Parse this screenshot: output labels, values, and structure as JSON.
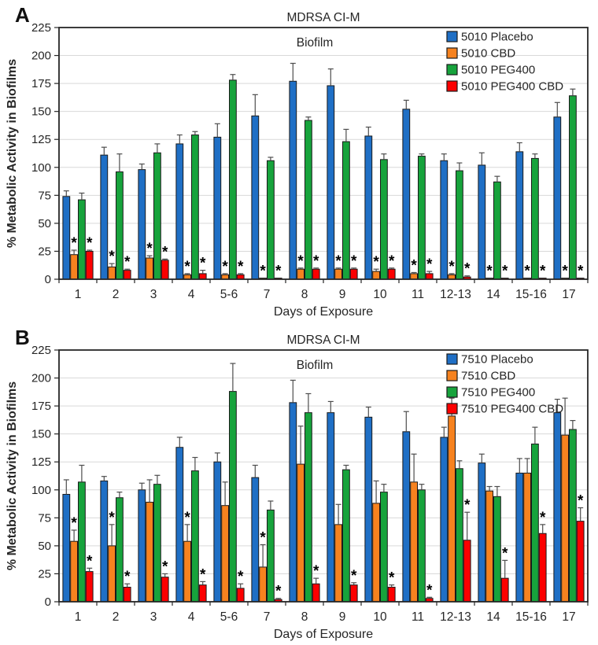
{
  "style": {
    "gridline_color": "#D9D9D9",
    "axis_color": "#262626",
    "bar_outline_color": "#1A1A1A",
    "error_bar_color": "#4D4D4D",
    "significance_color": "#000000"
  },
  "chart_data": [
    {
      "type": "bar",
      "panel_label": "A",
      "title": "MDRSA CI-M",
      "subtitle": "Biofilm",
      "xlabel": "Days of Exposure",
      "ylabel": "% Metabolic Activity in Biofilms",
      "ylim": [
        0,
        225
      ],
      "ytick_step": 25,
      "grid": true,
      "legend_position": "top-right",
      "significance_marker": "*",
      "categories": [
        "1",
        "2",
        "3",
        "4",
        "5-6",
        "7",
        "8",
        "9",
        "10",
        "11",
        "12-13",
        "14",
        "15-16",
        "17"
      ],
      "series": [
        {
          "name": "5010 Placebo",
          "color": "#1F6FC5",
          "values": [
            74,
            111,
            98,
            121,
            127,
            146,
            177,
            173,
            128,
            152,
            106,
            102,
            114,
            145
          ],
          "errors": [
            5,
            7,
            5,
            8,
            12,
            19,
            16,
            15,
            8,
            8,
            6,
            11,
            8,
            13
          ],
          "significant": [
            false,
            false,
            false,
            false,
            false,
            false,
            false,
            false,
            false,
            false,
            false,
            false,
            false,
            false
          ]
        },
        {
          "name": "5010 CBD",
          "color": "#F6821F",
          "values": [
            22,
            11,
            19,
            4,
            4,
            1,
            9,
            9,
            7,
            5,
            4,
            1,
            1,
            1
          ],
          "errors": [
            4,
            3,
            2,
            1,
            1,
            0,
            1,
            1,
            2,
            1,
            1,
            0,
            0,
            0
          ],
          "significant": [
            true,
            true,
            true,
            true,
            true,
            true,
            true,
            true,
            true,
            true,
            true,
            true,
            true,
            true
          ]
        },
        {
          "name": "5010 PEG400",
          "color": "#17A33C",
          "values": [
            71,
            96,
            113,
            129,
            178,
            106,
            142,
            123,
            107,
            110,
            97,
            87,
            108,
            164
          ],
          "errors": [
            6,
            16,
            8,
            3,
            5,
            3,
            3,
            11,
            5,
            2,
            7,
            5,
            4,
            6
          ],
          "significant": [
            false,
            false,
            false,
            false,
            false,
            false,
            false,
            false,
            false,
            false,
            false,
            false,
            false,
            false
          ]
        },
        {
          "name": "5010 PEG400 CBD",
          "color": "#FC0000",
          "values": [
            25,
            8,
            17,
            5,
            4,
            1,
            9,
            9,
            9,
            5,
            2,
            1,
            1,
            1
          ],
          "errors": [
            1,
            1,
            1,
            3,
            1,
            0,
            1,
            1,
            1,
            2,
            1,
            0,
            0,
            0
          ],
          "significant": [
            true,
            true,
            true,
            true,
            true,
            true,
            true,
            true,
            true,
            true,
            true,
            true,
            true,
            true
          ]
        }
      ]
    },
    {
      "type": "bar",
      "panel_label": "B",
      "title": "MDRSA CI-M",
      "subtitle": "Biofilm",
      "xlabel": "Days of Exposure",
      "ylabel": "% Metabolic Activity in Biofilms",
      "ylim": [
        0,
        225
      ],
      "ytick_step": 25,
      "grid": true,
      "legend_position": "top-right",
      "significance_marker": "*",
      "categories": [
        "1",
        "2",
        "3",
        "4",
        "5-6",
        "7",
        "8",
        "9",
        "10",
        "11",
        "12-13",
        "14",
        "15-16",
        "17"
      ],
      "series": [
        {
          "name": "7510 Placebo",
          "color": "#1F6FC5",
          "values": [
            96,
            108,
            100,
            138,
            125,
            111,
            178,
            169,
            165,
            152,
            147,
            124,
            115,
            169
          ],
          "errors": [
            13,
            4,
            6,
            9,
            8,
            11,
            20,
            10,
            9,
            18,
            9,
            8,
            13,
            12
          ],
          "significant": [
            false,
            false,
            false,
            false,
            false,
            false,
            false,
            false,
            false,
            false,
            false,
            false,
            false,
            false
          ]
        },
        {
          "name": "7510 CBD",
          "color": "#F6821F",
          "values": [
            54,
            50,
            89,
            54,
            86,
            31,
            123,
            69,
            88,
            107,
            166,
            99,
            115,
            149
          ],
          "errors": [
            10,
            19,
            20,
            15,
            21,
            20,
            34,
            18,
            20,
            25,
            16,
            4,
            13,
            33
          ],
          "significant": [
            true,
            true,
            false,
            true,
            false,
            true,
            false,
            false,
            false,
            false,
            false,
            false,
            false,
            false
          ]
        },
        {
          "name": "7510 PEG400",
          "color": "#17A33C",
          "values": [
            107,
            93,
            105,
            117,
            188,
            82,
            169,
            118,
            98,
            100,
            119,
            94,
            141,
            154
          ],
          "errors": [
            15,
            5,
            8,
            12,
            25,
            8,
            17,
            4,
            7,
            5,
            7,
            9,
            15,
            8
          ],
          "significant": [
            false,
            false,
            false,
            false,
            false,
            false,
            false,
            false,
            false,
            false,
            false,
            false,
            false,
            false
          ]
        },
        {
          "name": "7510 PEG400 CBD",
          "color": "#FC0000",
          "values": [
            27,
            13,
            22,
            15,
            12,
            2,
            16,
            15,
            13,
            3,
            55,
            21,
            61,
            72
          ],
          "errors": [
            3,
            3,
            3,
            3,
            4,
            1,
            5,
            2,
            2,
            1,
            25,
            16,
            8,
            12
          ],
          "significant": [
            true,
            true,
            true,
            true,
            true,
            true,
            true,
            true,
            true,
            true,
            true,
            true,
            true,
            true
          ]
        }
      ]
    }
  ]
}
